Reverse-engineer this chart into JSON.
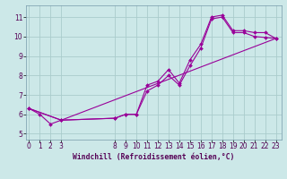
{
  "background_color": "#cce8e8",
  "grid_color": "#aacccc",
  "line_color": "#990099",
  "xlabel": "Windchill (Refroidissement éolien,°C)",
  "yticks": [
    5,
    6,
    7,
    8,
    9,
    10,
    11
  ],
  "xticks": [
    0,
    1,
    2,
    3,
    8,
    9,
    10,
    11,
    12,
    13,
    14,
    15,
    16,
    17,
    18,
    19,
    20,
    21,
    22,
    23
  ],
  "xlim": [
    -0.3,
    23.5
  ],
  "ylim": [
    4.7,
    11.6
  ],
  "line1_x": [
    0,
    1,
    2,
    3,
    8,
    9,
    10,
    11,
    12,
    13,
    14,
    15,
    16,
    17,
    18,
    19,
    20,
    21,
    22,
    23
  ],
  "line1_y": [
    6.3,
    6.0,
    5.5,
    5.7,
    5.8,
    6.0,
    6.0,
    7.5,
    7.7,
    8.3,
    7.6,
    8.8,
    9.6,
    11.0,
    11.1,
    10.3,
    10.3,
    10.2,
    10.2,
    9.9
  ],
  "line2_x": [
    0,
    3,
    23
  ],
  "line2_y": [
    6.3,
    5.7,
    9.9
  ],
  "line3_x": [
    0,
    3,
    8,
    9,
    10,
    11,
    12,
    13,
    14,
    15,
    16,
    17,
    18,
    19,
    20,
    21,
    22,
    23
  ],
  "line3_y": [
    6.3,
    5.7,
    5.8,
    6.0,
    6.0,
    7.2,
    7.5,
    8.0,
    7.5,
    8.5,
    9.4,
    10.9,
    11.0,
    10.2,
    10.2,
    10.0,
    9.95,
    9.9
  ]
}
